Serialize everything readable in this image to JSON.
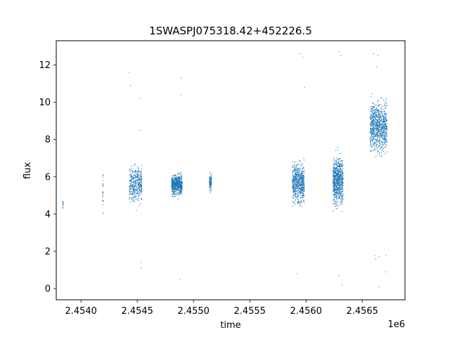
{
  "chart_data": {
    "type": "scatter",
    "title": "1SWASPJ075318.42+452226.5",
    "xlabel": "time",
    "ylabel": "flux",
    "x_offset_label": "1e6",
    "xlim": [
      2453780,
      2456880
    ],
    "ylim": [
      -0.6,
      13.3
    ],
    "x_ticks": [
      2.454,
      2.4545,
      2.455,
      2.4555,
      2.456,
      2.4565
    ],
    "x_tick_labels": [
      "2.4540",
      "2.4545",
      "2.4550",
      "2.4555",
      "2.4560",
      "2.4565"
    ],
    "y_ticks": [
      0,
      2,
      4,
      6,
      8,
      10,
      12
    ],
    "y_tick_labels": [
      "0",
      "2",
      "4",
      "6",
      "8",
      "10",
      "12"
    ],
    "grid": false,
    "legend": "none",
    "marker_color": "#1f77b4",
    "observing_seasons": [
      {
        "x_start": 2453838,
        "x_end": 2453841,
        "y_center": 4.5,
        "y_spread": 0.25,
        "count": 15
      },
      {
        "x_start": 2454193,
        "x_end": 2454197,
        "y_center": 5.1,
        "y_spread": 0.9,
        "count": 25
      },
      {
        "x_start": 2454430,
        "x_end": 2454542,
        "y_center": 5.6,
        "y_spread": 0.65,
        "count": 400
      },
      {
        "x_start": 2454805,
        "x_end": 2454900,
        "y_center": 5.6,
        "y_spread": 0.35,
        "count": 650
      },
      {
        "x_start": 2455140,
        "x_end": 2455160,
        "y_center": 5.7,
        "y_spread": 0.3,
        "count": 100
      },
      {
        "x_start": 2455880,
        "x_end": 2455985,
        "y_center": 5.7,
        "y_spread": 0.7,
        "count": 650
      },
      {
        "x_start": 2456240,
        "x_end": 2456330,
        "y_center": 5.8,
        "y_spread": 0.8,
        "count": 800
      },
      {
        "x_start": 2456570,
        "x_end": 2456720,
        "y_center": 8.7,
        "y_spread": 0.85,
        "count": 900
      }
    ],
    "outliers": [
      [
        2454430,
        11.6
      ],
      [
        2454440,
        10.9
      ],
      [
        2454520,
        10.2
      ],
      [
        2454525,
        8.5
      ],
      [
        2454530,
        1.4
      ],
      [
        2454535,
        1.1
      ],
      [
        2454890,
        11.3
      ],
      [
        2454885,
        10.4
      ],
      [
        2454880,
        0.5
      ],
      [
        2455920,
        0.8
      ],
      [
        2455950,
        12.6
      ],
      [
        2455970,
        12.4
      ],
      [
        2455985,
        10.8
      ],
      [
        2456295,
        12.7
      ],
      [
        2456310,
        12.5
      ],
      [
        2456290,
        0.7
      ],
      [
        2456320,
        0.2
      ],
      [
        2456600,
        12.6
      ],
      [
        2456640,
        12.5
      ],
      [
        2456610,
        1.8
      ],
      [
        2456620,
        1.6
      ],
      [
        2456650,
        1.7
      ],
      [
        2456710,
        1.8
      ],
      [
        2456650,
        0.1
      ],
      [
        2456710,
        0.9
      ],
      [
        2456625,
        11.9
      ]
    ]
  }
}
